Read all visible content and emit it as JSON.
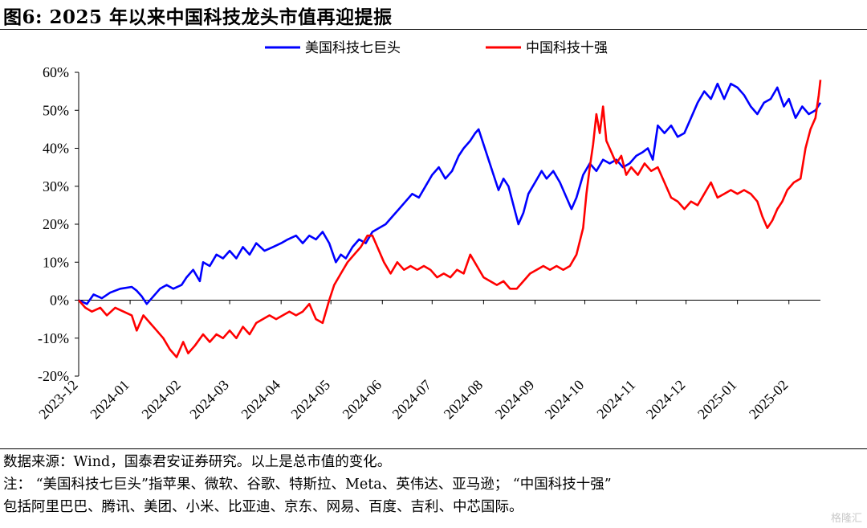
{
  "title": "图6:  2025 年以来中国科技龙头市值再迎提振",
  "chart_data": {
    "type": "line",
    "title": "图6:  2025 年以来中国科技龙头市值再迎提振",
    "xlabel": "",
    "ylabel": "",
    "ylim": [
      -20,
      60
    ],
    "yticks": [
      -20,
      -10,
      0,
      10,
      20,
      30,
      40,
      50,
      60
    ],
    "ytick_labels": [
      "-20%",
      "-10%",
      "0%",
      "10%",
      "20%",
      "30%",
      "40%",
      "50%",
      "60%"
    ],
    "x_range": [
      "2023-12-01",
      "2025-02-20"
    ],
    "xtick_labels": [
      "2023-12",
      "2024-01",
      "2024-02",
      "2024-03",
      "2024-04",
      "2024-05",
      "2024-06",
      "2024-07",
      "2024-08",
      "2024-09",
      "2024-10",
      "2024-11",
      "2024-12",
      "2025-01",
      "2025-02"
    ],
    "grid": false,
    "legend_position": "top",
    "series": [
      {
        "name": "美国科技七巨头",
        "color": "#0000ff",
        "points": [
          [
            "2023-12-01",
            0
          ],
          [
            "2023-12-06",
            -1
          ],
          [
            "2023-12-10",
            1.5
          ],
          [
            "2023-12-15",
            0.5
          ],
          [
            "2023-12-20",
            2
          ],
          [
            "2023-12-26",
            3
          ],
          [
            "2024-01-02",
            3.5
          ],
          [
            "2024-01-05",
            2.5
          ],
          [
            "2024-01-08",
            1
          ],
          [
            "2024-01-11",
            -1
          ],
          [
            "2024-01-15",
            1
          ],
          [
            "2024-01-19",
            3
          ],
          [
            "2024-01-23",
            4
          ],
          [
            "2024-01-27",
            3
          ],
          [
            "2024-02-01",
            4
          ],
          [
            "2024-02-04",
            6
          ],
          [
            "2024-02-08",
            8
          ],
          [
            "2024-02-12",
            5
          ],
          [
            "2024-02-14",
            10
          ],
          [
            "2024-02-18",
            9
          ],
          [
            "2024-02-22",
            12
          ],
          [
            "2024-02-26",
            11
          ],
          [
            "2024-03-01",
            13
          ],
          [
            "2024-03-05",
            11
          ],
          [
            "2024-03-09",
            14
          ],
          [
            "2024-03-13",
            12
          ],
          [
            "2024-03-17",
            15
          ],
          [
            "2024-03-22",
            13
          ],
          [
            "2024-03-27",
            14
          ],
          [
            "2024-04-01",
            15
          ],
          [
            "2024-04-05",
            16
          ],
          [
            "2024-04-10",
            17
          ],
          [
            "2024-04-14",
            15
          ],
          [
            "2024-04-18",
            17
          ],
          [
            "2024-04-22",
            16
          ],
          [
            "2024-04-26",
            18
          ],
          [
            "2024-04-30",
            15
          ],
          [
            "2024-05-04",
            10
          ],
          [
            "2024-05-07",
            12
          ],
          [
            "2024-05-10",
            11
          ],
          [
            "2024-05-14",
            14
          ],
          [
            "2024-05-18",
            16
          ],
          [
            "2024-05-22",
            15
          ],
          [
            "2024-05-26",
            18
          ],
          [
            "2024-05-30",
            19
          ],
          [
            "2024-06-03",
            20
          ],
          [
            "2024-06-07",
            22
          ],
          [
            "2024-06-11",
            24
          ],
          [
            "2024-06-15",
            26
          ],
          [
            "2024-06-19",
            28
          ],
          [
            "2024-06-23",
            27
          ],
          [
            "2024-06-27",
            30
          ],
          [
            "2024-07-01",
            33
          ],
          [
            "2024-07-05",
            35
          ],
          [
            "2024-07-09",
            32
          ],
          [
            "2024-07-13",
            34
          ],
          [
            "2024-07-17",
            38
          ],
          [
            "2024-07-20",
            40
          ],
          [
            "2024-07-24",
            42
          ],
          [
            "2024-07-27",
            44
          ],
          [
            "2024-07-29",
            45
          ],
          [
            "2024-08-01",
            41
          ],
          [
            "2024-08-04",
            37
          ],
          [
            "2024-08-07",
            33
          ],
          [
            "2024-08-10",
            29
          ],
          [
            "2024-08-13",
            32
          ],
          [
            "2024-08-16",
            30
          ],
          [
            "2024-08-19",
            25
          ],
          [
            "2024-08-22",
            20
          ],
          [
            "2024-08-25",
            23
          ],
          [
            "2024-08-28",
            28
          ],
          [
            "2024-09-01",
            31
          ],
          [
            "2024-09-05",
            34
          ],
          [
            "2024-09-08",
            32
          ],
          [
            "2024-09-12",
            34
          ],
          [
            "2024-09-16",
            31
          ],
          [
            "2024-09-20",
            27
          ],
          [
            "2024-09-23",
            24
          ],
          [
            "2024-09-26",
            27
          ],
          [
            "2024-09-30",
            33
          ],
          [
            "2024-10-04",
            36
          ],
          [
            "2024-10-08",
            34
          ],
          [
            "2024-10-12",
            37
          ],
          [
            "2024-10-16",
            36
          ],
          [
            "2024-10-20",
            37
          ],
          [
            "2024-10-24",
            35
          ],
          [
            "2024-10-28",
            36
          ],
          [
            "2024-11-01",
            38
          ],
          [
            "2024-11-05",
            39
          ],
          [
            "2024-11-08",
            40
          ],
          [
            "2024-11-11",
            37
          ],
          [
            "2024-11-14",
            46
          ],
          [
            "2024-11-18",
            44
          ],
          [
            "2024-11-22",
            46
          ],
          [
            "2024-11-26",
            43
          ],
          [
            "2024-11-30",
            44
          ],
          [
            "2024-12-04",
            48
          ],
          [
            "2024-12-08",
            52
          ],
          [
            "2024-12-12",
            55
          ],
          [
            "2024-12-16",
            53
          ],
          [
            "2024-12-20",
            57
          ],
          [
            "2024-12-24",
            53
          ],
          [
            "2024-12-28",
            57
          ],
          [
            "2025-01-01",
            56
          ],
          [
            "2025-01-05",
            54
          ],
          [
            "2025-01-09",
            51
          ],
          [
            "2025-01-13",
            49
          ],
          [
            "2025-01-17",
            52
          ],
          [
            "2025-01-21",
            53
          ],
          [
            "2025-01-25",
            56
          ],
          [
            "2025-01-29",
            51
          ],
          [
            "2025-02-01",
            53
          ],
          [
            "2025-02-05",
            48
          ],
          [
            "2025-02-09",
            51
          ],
          [
            "2025-02-13",
            49
          ],
          [
            "2025-02-17",
            50
          ],
          [
            "2025-02-20",
            52
          ]
        ]
      },
      {
        "name": "中国科技十强",
        "color": "#ff0000",
        "points": [
          [
            "2023-12-01",
            0
          ],
          [
            "2023-12-05",
            -2
          ],
          [
            "2023-12-09",
            -3
          ],
          [
            "2023-12-14",
            -2
          ],
          [
            "2023-12-18",
            -4
          ],
          [
            "2023-12-23",
            -2
          ],
          [
            "2023-12-28",
            -3
          ],
          [
            "2024-01-02",
            -4
          ],
          [
            "2024-01-05",
            -8
          ],
          [
            "2024-01-09",
            -4
          ],
          [
            "2024-01-13",
            -6
          ],
          [
            "2024-01-17",
            -8
          ],
          [
            "2024-01-21",
            -10
          ],
          [
            "2024-01-25",
            -13
          ],
          [
            "2024-01-29",
            -15
          ],
          [
            "2024-02-02",
            -11
          ],
          [
            "2024-02-05",
            -14
          ],
          [
            "2024-02-09",
            -12
          ],
          [
            "2024-02-14",
            -9
          ],
          [
            "2024-02-18",
            -11
          ],
          [
            "2024-02-22",
            -9
          ],
          [
            "2024-02-26",
            -10
          ],
          [
            "2024-03-01",
            -8
          ],
          [
            "2024-03-05",
            -10
          ],
          [
            "2024-03-09",
            -7
          ],
          [
            "2024-03-13",
            -9
          ],
          [
            "2024-03-17",
            -6
          ],
          [
            "2024-03-21",
            -5
          ],
          [
            "2024-03-25",
            -4
          ],
          [
            "2024-03-29",
            -5
          ],
          [
            "2024-04-02",
            -4
          ],
          [
            "2024-04-06",
            -3
          ],
          [
            "2024-04-10",
            -4
          ],
          [
            "2024-04-14",
            -3
          ],
          [
            "2024-04-18",
            -1
          ],
          [
            "2024-04-22",
            -5
          ],
          [
            "2024-04-26",
            -6
          ],
          [
            "2024-04-30",
            0
          ],
          [
            "2024-05-03",
            4
          ],
          [
            "2024-05-07",
            7
          ],
          [
            "2024-05-11",
            10
          ],
          [
            "2024-05-15",
            12
          ],
          [
            "2024-05-19",
            14
          ],
          [
            "2024-05-23",
            17
          ],
          [
            "2024-05-26",
            17
          ],
          [
            "2024-05-29",
            14
          ],
          [
            "2024-06-02",
            10
          ],
          [
            "2024-06-06",
            7
          ],
          [
            "2024-06-10",
            10
          ],
          [
            "2024-06-14",
            8
          ],
          [
            "2024-06-18",
            9
          ],
          [
            "2024-06-22",
            8
          ],
          [
            "2024-06-26",
            9
          ],
          [
            "2024-06-30",
            8
          ],
          [
            "2024-07-04",
            6
          ],
          [
            "2024-07-08",
            7
          ],
          [
            "2024-07-12",
            6
          ],
          [
            "2024-07-16",
            8
          ],
          [
            "2024-07-20",
            7
          ],
          [
            "2024-07-24",
            12
          ],
          [
            "2024-07-28",
            9
          ],
          [
            "2024-08-01",
            6
          ],
          [
            "2024-08-05",
            5
          ],
          [
            "2024-08-09",
            4
          ],
          [
            "2024-08-13",
            5
          ],
          [
            "2024-08-17",
            3
          ],
          [
            "2024-08-21",
            3
          ],
          [
            "2024-08-25",
            5
          ],
          [
            "2024-08-29",
            7
          ],
          [
            "2024-09-02",
            8
          ],
          [
            "2024-09-06",
            9
          ],
          [
            "2024-09-10",
            8
          ],
          [
            "2024-09-14",
            9
          ],
          [
            "2024-09-18",
            8
          ],
          [
            "2024-09-22",
            9
          ],
          [
            "2024-09-26",
            12
          ],
          [
            "2024-09-30",
            19
          ],
          [
            "2024-10-02",
            28
          ],
          [
            "2024-10-04",
            35
          ],
          [
            "2024-10-06",
            41
          ],
          [
            "2024-10-08",
            49
          ],
          [
            "2024-10-10",
            44
          ],
          [
            "2024-10-12",
            51
          ],
          [
            "2024-10-14",
            42
          ],
          [
            "2024-10-17",
            39
          ],
          [
            "2024-10-20",
            36
          ],
          [
            "2024-10-23",
            38
          ],
          [
            "2024-10-26",
            33
          ],
          [
            "2024-10-29",
            35
          ],
          [
            "2024-11-02",
            33
          ],
          [
            "2024-11-06",
            36
          ],
          [
            "2024-11-10",
            34
          ],
          [
            "2024-11-14",
            35
          ],
          [
            "2024-11-18",
            31
          ],
          [
            "2024-11-22",
            27
          ],
          [
            "2024-11-26",
            26
          ],
          [
            "2024-11-30",
            24
          ],
          [
            "2024-12-04",
            26
          ],
          [
            "2024-12-08",
            25
          ],
          [
            "2024-12-12",
            28
          ],
          [
            "2024-12-16",
            31
          ],
          [
            "2024-12-20",
            27
          ],
          [
            "2024-12-24",
            28
          ],
          [
            "2024-12-28",
            29
          ],
          [
            "2025-01-01",
            28
          ],
          [
            "2025-01-05",
            29
          ],
          [
            "2025-01-09",
            28
          ],
          [
            "2025-01-13",
            26
          ],
          [
            "2025-01-16",
            22
          ],
          [
            "2025-01-19",
            19
          ],
          [
            "2025-01-22",
            21
          ],
          [
            "2025-01-25",
            24
          ],
          [
            "2025-01-28",
            26
          ],
          [
            "2025-01-31",
            29
          ],
          [
            "2025-02-04",
            31
          ],
          [
            "2025-02-08",
            32
          ],
          [
            "2025-02-11",
            40
          ],
          [
            "2025-02-14",
            45
          ],
          [
            "2025-02-17",
            48
          ],
          [
            "2025-02-19",
            54
          ],
          [
            "2025-02-20",
            58
          ]
        ]
      }
    ]
  },
  "notes": {
    "line1": "数据来源：Wind，国泰君安证券研究。以上是总市值的变化。",
    "line2": "注：  “美国科技七巨头”指苹果、微软、谷歌、特斯拉、Meta、英伟达、亚马逊； “中国科技十强”",
    "line3": "包括阿里巴巴、腾讯、美团、小米、比亚迪、京东、网易、百度、吉利、中芯国际。"
  },
  "watermark": "格隆汇"
}
